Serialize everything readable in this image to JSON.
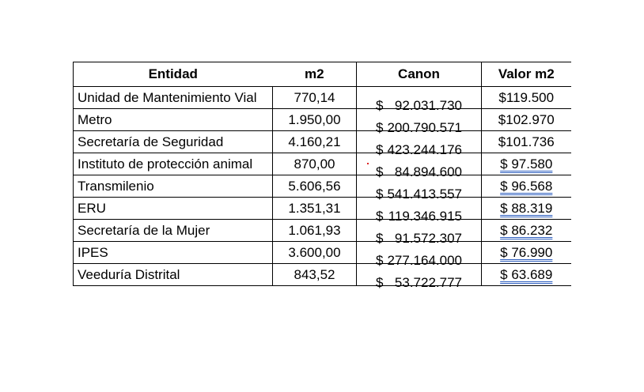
{
  "table": {
    "headers": {
      "entidad": "Entidad",
      "m2": "m2",
      "canon": "Canon",
      "valor": "Valor m2"
    },
    "rows": [
      {
        "entidad": "Unidad de Mantenimiento Vial",
        "m2": "770,14",
        "canon_cur": "$",
        "canon": "92.031.730",
        "valor": "$119.500"
      },
      {
        "entidad": "Metro",
        "m2": "1.950,00",
        "canon_cur": "$",
        "canon": "200.790.571",
        "valor": "$102.970"
      },
      {
        "entidad": "Secretaría de Seguridad",
        "m2": "4.160,21",
        "canon_cur": "$",
        "canon": "423.244.176",
        "valor": "$101.736"
      },
      {
        "entidad": "Instituto de protección animal",
        "m2": "870,00",
        "canon_cur": "$",
        "canon": "84.894.600",
        "valor": "$ 97.580"
      },
      {
        "entidad": "Transmilenio",
        "m2": "5.606,56",
        "canon_cur": "$",
        "canon": "541.413.557",
        "valor": "$ 96.568"
      },
      {
        "entidad": "ERU",
        "m2": "1.351,31",
        "canon_cur": "$",
        "canon": "119.346.915",
        "valor": "$ 88.319"
      },
      {
        "entidad": "Secretaría de la Mujer",
        "m2": "1.061,93",
        "canon_cur": "$",
        "canon": "91.572.307",
        "valor": "$ 86.232"
      },
      {
        "entidad": "IPES",
        "m2": "3.600,00",
        "canon_cur": "$",
        "canon": "277.164.000",
        "valor": "$ 76.990"
      },
      {
        "entidad": "Veeduría Distrital",
        "m2": "843,52",
        "canon_cur": "$",
        "canon": "53.722.777",
        "valor": "$ 63.689"
      }
    ]
  },
  "colors": {
    "underline": "#2e5fbf",
    "marker": "#dd2222"
  }
}
